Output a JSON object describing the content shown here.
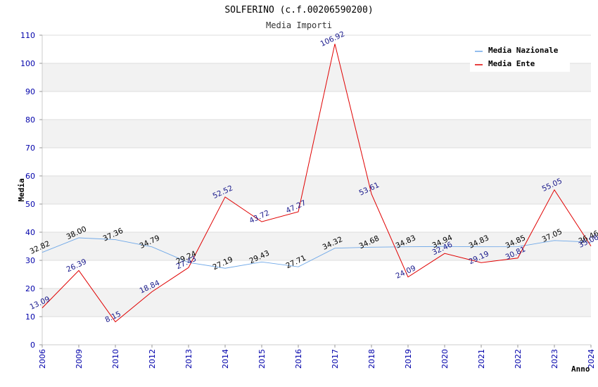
{
  "chart_data": {
    "type": "line",
    "title": "SOLFERINO (c.f.00206590200)",
    "subtitle": "Media Importi",
    "xlabel": "Anno",
    "ylabel": "Media",
    "ylim": [
      0,
      110
    ],
    "yticks": [
      "0",
      "10",
      "20",
      "30",
      "40",
      "50",
      "60",
      "70",
      "80",
      "90",
      "100",
      "110"
    ],
    "categories": [
      "2006",
      "2009",
      "2010",
      "2012",
      "2013",
      "2014",
      "2015",
      "2016",
      "2017",
      "2018",
      "2019",
      "2020",
      "2021",
      "2022",
      "2023",
      "2024"
    ],
    "series": [
      {
        "name": "Media Nazionale",
        "color": "#6fa8e8",
        "values": [
          32.82,
          38.0,
          37.36,
          34.79,
          29.24,
          27.19,
          29.43,
          27.71,
          34.32,
          34.68,
          34.83,
          34.94,
          34.83,
          34.85,
          37.05,
          36.46
        ],
        "labels": [
          "32.82",
          "38.00",
          "37.36",
          "34.79",
          "29.24",
          "27.19",
          "29.43",
          "27.71",
          "34.32",
          "34.68",
          "34.83",
          "34.94",
          "34.83",
          "34.85",
          "37.05",
          "36.46"
        ]
      },
      {
        "name": "Media Ente",
        "color": "#e00000",
        "values": [
          13.09,
          26.39,
          8.15,
          18.84,
          27.43,
          52.52,
          43.72,
          47.27,
          106.92,
          53.61,
          24.09,
          32.46,
          29.19,
          30.81,
          55.05,
          35.06
        ],
        "labels": [
          "13.09",
          "26.39",
          "8.15",
          "18.84",
          "27.43",
          "52.52",
          "43.72",
          "47.27",
          "106.92",
          "53.61",
          "24.09",
          "32.46",
          "29.19",
          "30.81",
          "55.05",
          "35.06"
        ]
      }
    ],
    "legend_position": "top-right",
    "grid": true
  }
}
